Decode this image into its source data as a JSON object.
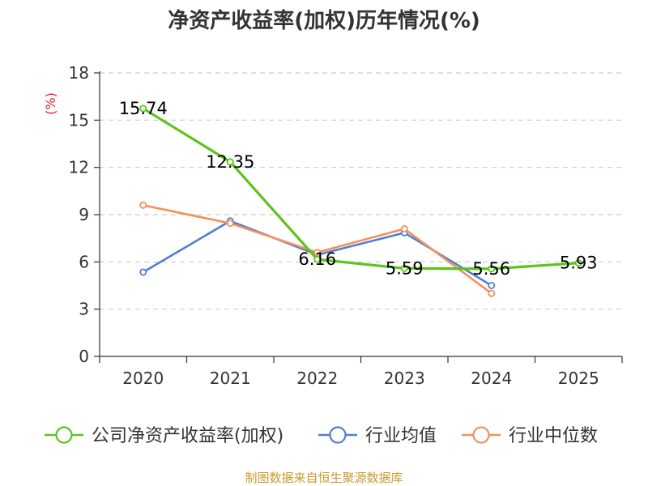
{
  "chart_data": {
    "type": "line",
    "title": "净资产收益率(加权)历年情况(%)",
    "ylabel": "(%)",
    "xlabel": "",
    "categories": [
      "2020",
      "2021",
      "2022",
      "2023",
      "2024",
      "2025"
    ],
    "ylim": [
      0,
      18
    ],
    "yticks": [
      0,
      3,
      6,
      9,
      12,
      15,
      18
    ],
    "grid": true,
    "legend_position": "bottom",
    "series": [
      {
        "name": "公司净资产收益率(加权)",
        "color": "#5cc41a",
        "values": [
          15.74,
          12.35,
          6.16,
          5.59,
          5.56,
          5.93
        ],
        "labels": [
          "15.74",
          "12.35",
          "6.16",
          "5.59",
          "5.56",
          "5.93"
        ],
        "show_labels": true
      },
      {
        "name": "行业均值",
        "color": "#4f7fd6",
        "values": [
          5.35,
          8.6,
          6.45,
          7.85,
          4.5,
          null
        ],
        "show_labels": false
      },
      {
        "name": "行业中位数",
        "color": "#f5905a",
        "values": [
          9.6,
          8.45,
          6.6,
          8.1,
          4.0,
          null
        ],
        "show_labels": false
      }
    ],
    "source": "制图数据来自恒生聚源数据库"
  }
}
